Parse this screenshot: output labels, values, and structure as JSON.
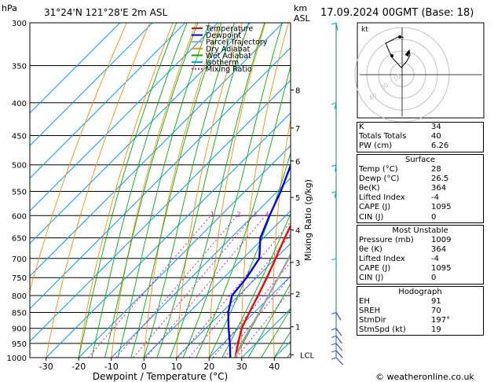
{
  "header": {
    "pressure_unit": "hPa",
    "location": "31°24'N  121°28'E  2m  ASL",
    "km_label": "km",
    "asl_label": "ASL",
    "datetime": "17.09.2024  00GMT  (Base: 18)"
  },
  "chart_data": {
    "type": "skew-t",
    "xlabel": "Dewpoint / Temperature (°C)",
    "ylabel": "",
    "right_axis_label": "Mixing Ratio (g/kg)",
    "pressure_levels": [
      300,
      350,
      400,
      450,
      500,
      550,
      600,
      650,
      700,
      750,
      800,
      850,
      900,
      950,
      1000
    ],
    "temperature_ticks": [
      -30,
      -20,
      -10,
      0,
      10,
      20,
      30,
      40
    ],
    "altitude_km": [
      {
        "label": "8",
        "p": 382
      },
      {
        "label": "7",
        "p": 438
      },
      {
        "label": "6",
        "p": 493
      },
      {
        "label": "5",
        "p": 562
      },
      {
        "label": "4",
        "p": 632
      },
      {
        "label": "3",
        "p": 710
      },
      {
        "label": "2",
        "p": 795
      },
      {
        "label": "1",
        "p": 895
      },
      {
        "label": "LCL",
        "p": 990
      }
    ],
    "mixing_ratio_labels": [
      "1",
      "2",
      "3",
      "4",
      "8",
      "10",
      "16",
      "20",
      "25"
    ],
    "legend": [
      {
        "name": "Temperature",
        "color": "#ff0000"
      },
      {
        "name": "Dewpoint",
        "color": "#0000ff"
      },
      {
        "name": "Parcel Trajectory",
        "color": "#a0a0a0"
      },
      {
        "name": "Dry Adiabat",
        "color": "#ff8c00"
      },
      {
        "name": "Wet Adiabat",
        "color": "#00b000"
      },
      {
        "name": "Isotherm",
        "color": "#00a0ff"
      },
      {
        "name": "Mixing Ratio",
        "color": "#d000d0"
      }
    ],
    "series": [
      {
        "name": "Temperature",
        "points": [
          [
            1000,
            28
          ],
          [
            950,
            24.5
          ],
          [
            900,
            21
          ],
          [
            850,
            18.5
          ],
          [
            800,
            16
          ],
          [
            750,
            13.2
          ],
          [
            700,
            10
          ],
          [
            650,
            6.5
          ],
          [
            600,
            3
          ],
          [
            550,
            -1
          ],
          [
            500,
            -5.5
          ],
          [
            450,
            -11
          ],
          [
            400,
            -17
          ],
          [
            350,
            -25
          ],
          [
            320,
            -30
          ]
        ]
      },
      {
        "name": "Dewpoint",
        "points": [
          [
            1000,
            26.5
          ],
          [
            950,
            22
          ],
          [
            900,
            17
          ],
          [
            850,
            12
          ],
          [
            800,
            8
          ],
          [
            750,
            7
          ],
          [
            700,
            5
          ],
          [
            650,
            -1
          ],
          [
            600,
            -5
          ],
          [
            550,
            -9
          ],
          [
            500,
            -14
          ],
          [
            450,
            -20
          ],
          [
            400,
            -25
          ],
          [
            350,
            -31
          ],
          [
            320,
            -35
          ]
        ]
      },
      {
        "name": "Parcel Trajectory",
        "points": [
          [
            1000,
            28
          ],
          [
            950,
            25.6
          ],
          [
            900,
            23.6
          ],
          [
            850,
            21.5
          ],
          [
            800,
            19.2
          ],
          [
            750,
            16.7
          ],
          [
            700,
            14
          ],
          [
            650,
            11
          ],
          [
            600,
            7.7
          ],
          [
            550,
            4.2
          ],
          [
            500,
            0.2
          ],
          [
            450,
            -4.5
          ],
          [
            400,
            -10
          ],
          [
            350,
            -16.5
          ],
          [
            320,
            -21
          ]
        ]
      }
    ],
    "wind_barbs": [
      {
        "p": 300,
        "speed_kt": 5,
        "dir": 200
      },
      {
        "p": 400,
        "speed_kt": 20,
        "dir": 250
      },
      {
        "p": 500,
        "speed_kt": 15,
        "dir": 240
      },
      {
        "p": 550,
        "speed_kt": 20,
        "dir": 250
      },
      {
        "p": 700,
        "speed_kt": 10,
        "dir": 220
      },
      {
        "p": 850,
        "speed_kt": 15,
        "dir": 160
      },
      {
        "p": 900,
        "speed_kt": 20,
        "dir": 150
      },
      {
        "p": 925,
        "speed_kt": 20,
        "dir": 145
      },
      {
        "p": 950,
        "speed_kt": 20,
        "dir": 140
      },
      {
        "p": 975,
        "speed_kt": 15,
        "dir": 135
      },
      {
        "p": 1000,
        "speed_kt": 10,
        "dir": 130
      }
    ]
  },
  "hodograph": {
    "label": "kt",
    "ring_labels": [
      "10",
      "30",
      "40"
    ],
    "hodo_line_color": "#000000"
  },
  "indices": {
    "top": [
      {
        "label": "K",
        "value": "34"
      },
      {
        "label": "Totals Totals",
        "value": "40"
      },
      {
        "label": "PW (cm)",
        "value": "6.26"
      }
    ],
    "surface_title": "Surface",
    "surface": [
      {
        "label": "Temp (°C)",
        "value": "28"
      },
      {
        "label": "Dewp (°C)",
        "value": "26.5"
      },
      {
        "label": "θe(K)",
        "value": "364"
      },
      {
        "label": "Lifted Index",
        "value": "-4"
      },
      {
        "label": "CAPE (J)",
        "value": "1095"
      },
      {
        "label": "CIN (J)",
        "value": "0"
      }
    ],
    "mu_title": "Most Unstable",
    "most_unstable": [
      {
        "label": "Pressure (mb)",
        "value": "1009"
      },
      {
        "label": "θe (K)",
        "value": "364"
      },
      {
        "label": "Lifted Index",
        "value": "-4"
      },
      {
        "label": "CAPE (J)",
        "value": "1095"
      },
      {
        "label": "CIN (J)",
        "value": "0"
      }
    ],
    "hodo_title": "Hodograph",
    "hodograph": [
      {
        "label": "EH",
        "value": "91"
      },
      {
        "label": "SREH",
        "value": "70"
      },
      {
        "label": "StmDir",
        "value": "197°"
      },
      {
        "label": "StmSpd (kt)",
        "value": "19"
      }
    ]
  },
  "footer": {
    "copyright": "© weatheronline.co.uk"
  }
}
